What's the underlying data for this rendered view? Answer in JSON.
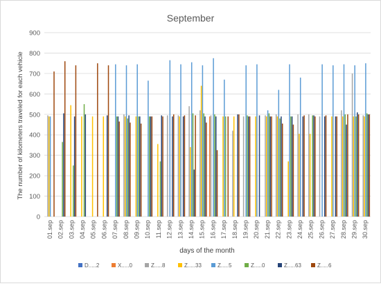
{
  "chart_data": {
    "type": "bar",
    "title": "September",
    "xlabel": "days of the month",
    "ylabel": "The number of kilometers traveled for each vehicle",
    "ylim": [
      0,
      900
    ],
    "yticks": [
      0,
      100,
      200,
      300,
      400,
      500,
      600,
      700,
      800,
      900
    ],
    "grid": true,
    "legend_position": "bottom",
    "categories": [
      "01.sep",
      "02.sep",
      "03.sep",
      "04.sep",
      "05.sep",
      "06.sep",
      "07.sep",
      "08.sep",
      "09.sep",
      "10.sep",
      "11.sep",
      "12.sep",
      "13.sep",
      "14.sep",
      "15.sep",
      "16.sep",
      "17.sep",
      "18.sep",
      "19.sep",
      "20.sep",
      "21.sep",
      "22.sep",
      "23.sep",
      "24.sep",
      "25.sep",
      "26.sep",
      "27.sep",
      "28.sep",
      "29.sep",
      "30.sep"
    ],
    "series": [
      {
        "name": "D.....2",
        "color": "#4472C4",
        "values": [
          0,
          0,
          0,
          0,
          0,
          0,
          0,
          0,
          0,
          0,
          0,
          0,
          0,
          0,
          0,
          0,
          0,
          0,
          0,
          0,
          0,
          0,
          0,
          0,
          0,
          0,
          0,
          0,
          0,
          0
        ]
      },
      {
        "name": "X.....0",
        "color": "#ED7D31",
        "values": [
          0,
          0,
          0,
          0,
          0,
          0,
          0,
          0,
          0,
          0,
          0,
          0,
          0,
          0,
          0,
          490,
          0,
          0,
          0,
          0,
          0,
          0,
          0,
          0,
          0,
          0,
          0,
          0,
          0,
          0
        ]
      },
      {
        "name": "Z.....8",
        "color": "#A5A5A5",
        "values": [
          495,
          0,
          0,
          0,
          0,
          0,
          0,
          500,
          0,
          0,
          0,
          495,
          495,
          540,
          520,
          495,
          0,
          420,
          490,
          0,
          495,
          500,
          0,
          500,
          500,
          490,
          0,
          520,
          700,
          495
        ]
      },
      {
        "name": "Z.....33",
        "color": "#FFC000",
        "values": [
          490,
          0,
          545,
          490,
          490,
          490,
          0,
          490,
          490,
          0,
          355,
          0,
          490,
          340,
          640,
          0,
          490,
          490,
          0,
          490,
          490,
          490,
          270,
          405,
          405,
          0,
          490,
          490,
          490,
          490
        ]
      },
      {
        "name": "Z.....5",
        "color": "#5B9BD5",
        "values": [
          490,
          0,
          0,
          0,
          0,
          0,
          745,
          740,
          745,
          665,
          0,
          765,
          745,
          755,
          740,
          775,
          670,
          0,
          740,
          745,
          520,
          620,
          745,
          680,
          0,
          745,
          740,
          745,
          740,
          750
        ]
      },
      {
        "name": "Z.....0",
        "color": "#70AD47",
        "values": [
          0,
          365,
          250,
          550,
          0,
          0,
          490,
          480,
          490,
          490,
          270,
          0,
          0,
          505,
          505,
          500,
          490,
          0,
          495,
          0,
          505,
          480,
          490,
          0,
          495,
          0,
          0,
          500,
          490,
          505
        ]
      },
      {
        "name": "Z.....63",
        "color": "#264478",
        "values": [
          0,
          505,
          490,
          500,
          0,
          495,
          490,
          495,
          490,
          490,
          495,
          490,
          490,
          230,
          490,
          490,
          0,
          500,
          490,
          495,
          490,
          490,
          490,
          490,
          495,
          490,
          490,
          450,
          510,
          500
        ]
      },
      {
        "name": "Z.....6",
        "color": "#9E480E",
        "values": [
          710,
          760,
          740,
          0,
          750,
          740,
          465,
          460,
          455,
          490,
          490,
          500,
          495,
          495,
          460,
          325,
          490,
          500,
          490,
          0,
          490,
          455,
          450,
          495,
          490,
          495,
          490,
          500,
          500,
          500
        ]
      }
    ]
  }
}
